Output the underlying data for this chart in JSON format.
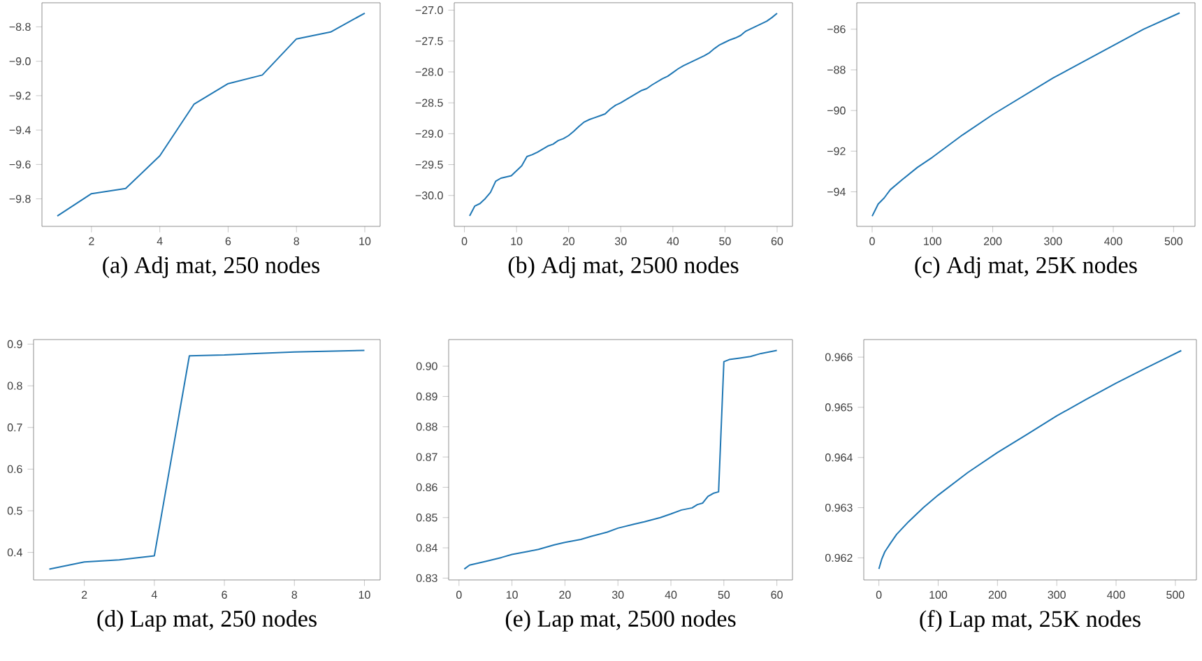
{
  "chart_data": [
    {
      "type": "line",
      "title": "(a) Adj mat, 250 nodes",
      "x": [
        1,
        2,
        3,
        4,
        5,
        6,
        7,
        8,
        9,
        10
      ],
      "series": [
        {
          "color": "#1f77b4",
          "values": [
            -9.9,
            -9.77,
            -9.74,
            -9.55,
            -9.25,
            -9.13,
            -9.08,
            -8.87,
            -8.83,
            -8.72
          ]
        }
      ],
      "xlim": [
        0.55,
        10.45
      ],
      "ylim": [
        -9.96,
        -8.66
      ],
      "xticks": [
        2,
        4,
        6,
        8,
        10
      ],
      "yticks": [
        {
          "value": -9.8,
          "label": "−9.8"
        },
        {
          "value": -9.6,
          "label": "−9.6"
        },
        {
          "value": -9.4,
          "label": "−9.4"
        },
        {
          "value": -9.2,
          "label": "−9.2"
        },
        {
          "value": -9.0,
          "label": "−9.0"
        },
        {
          "value": -8.8,
          "label": "−8.8"
        }
      ]
    },
    {
      "type": "line",
      "title": "(b) Adj mat, 2500 nodes",
      "x": [
        1,
        2,
        3,
        4,
        5,
        6,
        7,
        8,
        9,
        10,
        11,
        12,
        13,
        14,
        15,
        16,
        17,
        18,
        19,
        20,
        21,
        22,
        23,
        24,
        25,
        26,
        27,
        28,
        29,
        30,
        31,
        32,
        33,
        34,
        35,
        36,
        37,
        38,
        39,
        40,
        41,
        42,
        43,
        44,
        45,
        46,
        47,
        48,
        49,
        50,
        51,
        52,
        53,
        54,
        55,
        56,
        57,
        58,
        59,
        60
      ],
      "series": [
        {
          "color": "#1f77b4",
          "values": [
            -30.33,
            -30.17,
            -30.13,
            -30.05,
            -29.95,
            -29.77,
            -29.72,
            -29.7,
            -29.68,
            -29.6,
            -29.52,
            -29.37,
            -29.34,
            -29.3,
            -29.25,
            -29.2,
            -29.17,
            -29.11,
            -29.08,
            -29.03,
            -28.96,
            -28.88,
            -28.81,
            -28.77,
            -28.74,
            -28.71,
            -28.68,
            -28.6,
            -28.54,
            -28.5,
            -28.45,
            -28.4,
            -28.35,
            -28.3,
            -28.27,
            -28.21,
            -28.16,
            -28.11,
            -28.07,
            -28.01,
            -27.95,
            -27.9,
            -27.86,
            -27.82,
            -27.78,
            -27.74,
            -27.69,
            -27.62,
            -27.56,
            -27.52,
            -27.48,
            -27.45,
            -27.41,
            -27.34,
            -27.3,
            -27.26,
            -27.22,
            -27.18,
            -27.12,
            -27.05
          ]
        }
      ],
      "xlim": [
        -1.95,
        62.95
      ],
      "ylim": [
        -30.5,
        -26.88
      ],
      "xticks": [
        0,
        10,
        20,
        30,
        40,
        50,
        60
      ],
      "yticks": [
        {
          "value": -30.0,
          "label": "−30.0"
        },
        {
          "value": -29.5,
          "label": "−29.5"
        },
        {
          "value": -29.0,
          "label": "−29.0"
        },
        {
          "value": -28.5,
          "label": "−28.5"
        },
        {
          "value": -28.0,
          "label": "−28.0"
        },
        {
          "value": -27.5,
          "label": "−27.5"
        },
        {
          "value": -27.0,
          "label": "−27.0"
        }
      ]
    },
    {
      "type": "line",
      "title": "(c) Adj mat, 25K nodes",
      "x": [
        0,
        5,
        10,
        20,
        30,
        50,
        75,
        100,
        150,
        200,
        250,
        300,
        350,
        400,
        450,
        510
      ],
      "series": [
        {
          "color": "#1f77b4",
          "values": [
            -95.2,
            -94.9,
            -94.6,
            -94.3,
            -93.9,
            -93.4,
            -92.8,
            -92.3,
            -91.2,
            -90.2,
            -89.3,
            -88.4,
            -87.6,
            -86.8,
            -86.0,
            -85.2
          ]
        }
      ],
      "xlim": [
        -25.5,
        535.5
      ],
      "ylim": [
        -95.7,
        -84.7
      ],
      "xticks": [
        0,
        100,
        200,
        300,
        400,
        500
      ],
      "yticks": [
        {
          "value": -94,
          "label": "−94"
        },
        {
          "value": -92,
          "label": "−92"
        },
        {
          "value": -90,
          "label": "−90"
        },
        {
          "value": -88,
          "label": "−88"
        },
        {
          "value": -86,
          "label": "−86"
        }
      ]
    },
    {
      "type": "line",
      "title": "(d) Lap mat, 250 nodes",
      "x": [
        1,
        2,
        3,
        4,
        5,
        6,
        7,
        8,
        9,
        10
      ],
      "series": [
        {
          "color": "#1f77b4",
          "values": [
            0.36,
            0.377,
            0.382,
            0.392,
            0.872,
            0.874,
            0.878,
            0.881,
            0.883,
            0.885
          ]
        }
      ],
      "xlim": [
        0.55,
        10.45
      ],
      "ylim": [
        0.334,
        0.911
      ],
      "xticks": [
        2,
        4,
        6,
        8,
        10
      ],
      "yticks": [
        0.4,
        0.5,
        0.6,
        0.7,
        0.8,
        0.9
      ]
    },
    {
      "type": "line",
      "title": "(e) Lap mat, 2500 nodes",
      "x": [
        1,
        2,
        5,
        8,
        10,
        13,
        15,
        18,
        20,
        23,
        25,
        28,
        30,
        33,
        35,
        38,
        40,
        42,
        44,
        45,
        46,
        47,
        48,
        49,
        50,
        51,
        53,
        55,
        57,
        60
      ],
      "series": [
        {
          "color": "#1f77b4",
          "values": [
            0.833,
            0.8343,
            0.8355,
            0.8368,
            0.8378,
            0.8388,
            0.8395,
            0.841,
            0.8418,
            0.8428,
            0.8438,
            0.8452,
            0.8465,
            0.8478,
            0.8486,
            0.85,
            0.8512,
            0.8525,
            0.8532,
            0.8543,
            0.8548,
            0.857,
            0.858,
            0.8585,
            0.9015,
            0.9022,
            0.9027,
            0.9032,
            0.9042,
            0.9052
          ]
        }
      ],
      "xlim": [
        -1.95,
        62.95
      ],
      "ylim": [
        0.8294,
        0.9088
      ],
      "xticks": [
        0,
        10,
        20,
        30,
        40,
        50,
        60
      ],
      "yticks": [
        0.83,
        0.84,
        0.85,
        0.86,
        0.87,
        0.88,
        0.89,
        {
          "value": 0.9,
          "label": "0.90"
        }
      ]
    },
    {
      "type": "line",
      "title": "(f) Lap mat, 25K nodes",
      "x": [
        0,
        5,
        10,
        20,
        30,
        50,
        75,
        100,
        150,
        200,
        250,
        300,
        350,
        400,
        450,
        510
      ],
      "series": [
        {
          "color": "#1f77b4",
          "values": [
            0.96178,
            0.96198,
            0.96212,
            0.9623,
            0.96247,
            0.96272,
            0.963,
            0.96325,
            0.9637,
            0.9641,
            0.96446,
            0.96483,
            0.96516,
            0.96548,
            0.96578,
            0.96613
          ]
        }
      ],
      "xlim": [
        -25.5,
        535.5
      ],
      "ylim": [
        0.96156,
        0.96635
      ],
      "xticks": [
        0,
        100,
        200,
        300,
        400,
        500
      ],
      "yticks": [
        0.962,
        0.963,
        0.964,
        0.965,
        0.966
      ]
    }
  ]
}
